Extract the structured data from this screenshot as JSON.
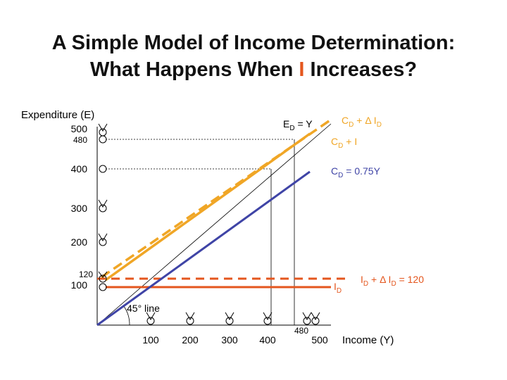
{
  "title": {
    "line1": "A Simple Model of Income Determination:",
    "line2_pre": "What Happens When ",
    "line2_highlight": "I",
    "line2_post": " Increases?"
  },
  "axes": {
    "y_label": "Expenditure (E)",
    "x_label": "Income (Y)",
    "y_ticks": [
      "500",
      "480",
      "400",
      "300",
      "200",
      "120",
      "100"
    ],
    "x_ticks": [
      "100",
      "200",
      "300",
      "400",
      "480",
      "500"
    ],
    "x_range": [
      0,
      500
    ],
    "y_range": [
      0,
      500
    ]
  },
  "labels": {
    "ed_main": "E",
    "ed_sub": "D",
    "ed_tail": " = Y",
    "cd_dI": "C",
    "cd_dI_sub1": "D",
    "cd_dI_mid": " + Δ I",
    "cd_dI_sub2": "D",
    "cd_I": "C",
    "cd_I_sub": "D",
    "cd_I_tail": " +  I",
    "cd": "C",
    "cd_sub": "D",
    "cd_tail": " = 0.75Y",
    "id": "I",
    "id_sub": "D",
    "id_dI_pre": "I",
    "id_dI_sub1": "D",
    "id_dI_mid": " + Δ I",
    "id_dI_sub2": "D",
    "id_dI_tail": " = 120",
    "angle": "45° line"
  },
  "colors": {
    "consumption": "#3f44a6",
    "aggregate": "#f0a626",
    "investment": "#e4561e",
    "axis": "#000000",
    "highlight": "#e4561e"
  },
  "chart_data": {
    "type": "line",
    "x_range": [
      0,
      500
    ],
    "y_range": [
      0,
      500
    ],
    "series": [
      {
        "name": "E_D = Y",
        "style": "solid-thin",
        "color": "#000000",
        "points": [
          [
            0,
            0
          ],
          [
            500,
            500
          ]
        ]
      },
      {
        "name": "C_D = 0.75Y",
        "color": "#3f44a6",
        "points": [
          [
            0,
            0
          ],
          [
            500,
            375
          ]
        ]
      },
      {
        "name": "C_D + I",
        "color": "#f0a626",
        "points": [
          [
            0,
            100
          ],
          [
            500,
            475
          ]
        ]
      },
      {
        "name": "C_D + Δ I_D",
        "color": "#f0a626",
        "style": "dashed",
        "points": [
          [
            0,
            120
          ],
          [
            500,
            495
          ]
        ]
      },
      {
        "name": "I_D",
        "color": "#e4561e",
        "points": [
          [
            0,
            100
          ],
          [
            500,
            100
          ]
        ]
      },
      {
        "name": "I_D + Δ I_D = 120",
        "color": "#e4561e",
        "style": "dashed",
        "points": [
          [
            0,
            120
          ],
          [
            550,
            120
          ]
        ]
      }
    ],
    "equilibria": [
      {
        "x": 400,
        "y": 400
      },
      {
        "x": 480,
        "y": 480
      }
    ]
  }
}
